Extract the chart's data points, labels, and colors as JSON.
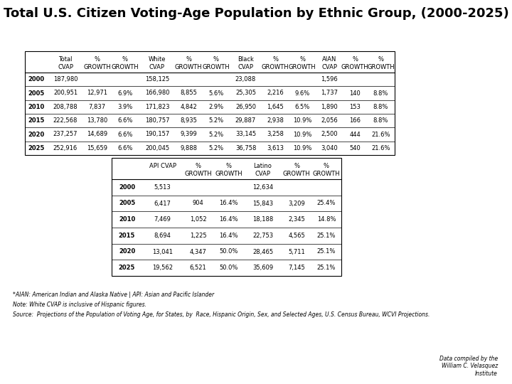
{
  "title": "Total U.S. Citizen Voting-Age Population by Ethnic Group, (2000-2025)",
  "t1_rows": [
    [
      "2000",
      "187,980",
      "",
      "",
      "158,125",
      "",
      "",
      "23,088",
      "",
      "",
      "1,596",
      "",
      ""
    ],
    [
      "2005",
      "200,951",
      "12,971",
      "6.9%",
      "166,980",
      "8,855",
      "5.6%",
      "25,305",
      "2,216",
      "9.6%",
      "1,737",
      "140",
      "8.8%"
    ],
    [
      "2010",
      "208,788",
      "7,837",
      "3.9%",
      "171,823",
      "4,842",
      "2.9%",
      "26,950",
      "1,645",
      "6.5%",
      "1,890",
      "153",
      "8.8%"
    ],
    [
      "2015",
      "222,568",
      "13,780",
      "6.6%",
      "180,757",
      "8,935",
      "5.2%",
      "29,887",
      "2,938",
      "10.9%",
      "2,056",
      "166",
      "8.8%"
    ],
    [
      "2020",
      "237,257",
      "14,689",
      "6.6%",
      "190,157",
      "9,399",
      "5.2%",
      "33,145",
      "3,258",
      "10.9%",
      "2,500",
      "444",
      "21.6%"
    ],
    [
      "2025",
      "252,916",
      "15,659",
      "6.6%",
      "200,045",
      "9,888",
      "5.2%",
      "36,758",
      "3,613",
      "10.9%",
      "3,040",
      "540",
      "21.6%"
    ]
  ],
  "t1_h1": [
    "",
    "Total",
    "%",
    "%",
    "White",
    "%",
    "%",
    "Black",
    "%",
    "%",
    "AIAN",
    "%",
    "%"
  ],
  "t1_h2": [
    "",
    "CVAP",
    "GROWTH",
    "GROWTH",
    "CVAP",
    "GROWTH",
    "GROWTH",
    "CVAP",
    "GROWTH",
    "GROWTH",
    "CVAP",
    "GROWTH",
    "GROWTH"
  ],
  "t2_rows": [
    [
      "2000",
      "5,513",
      "",
      "",
      "12,634",
      "",
      ""
    ],
    [
      "2005",
      "6,417",
      "904",
      "16.4%",
      "15,843",
      "3,209",
      "25.4%"
    ],
    [
      "2010",
      "7,469",
      "1,052",
      "16.4%",
      "18,188",
      "2,345",
      "14.8%"
    ],
    [
      "2015",
      "8,694",
      "1,225",
      "16.4%",
      "22,753",
      "4,565",
      "25.1%"
    ],
    [
      "2020",
      "13,041",
      "4,347",
      "50.0%",
      "28,465",
      "5,711",
      "25.1%"
    ],
    [
      "2025",
      "19,562",
      "6,521",
      "50.0%",
      "35,609",
      "7,145",
      "25.1%"
    ]
  ],
  "t2_h1": [
    "",
    "API CVAP",
    "%",
    "%",
    "Latino",
    "%",
    "%"
  ],
  "t2_h2": [
    "",
    "",
    "GROWTH",
    "GROWTH",
    "CVAP",
    "GROWTH",
    "GROWTH"
  ],
  "footnote1": "*AIAN: American Indian and Alaska Native | API: Asian and Pacific Islander",
  "footnote2": "Note: White CVAP is inclusive of Hispanic figures.",
  "footnote3": "Source:  Projections of the Population of Voting Age, for States, by  Race, Hispanic Origin, Sex, and Selected Ages, U.S. Census Bureau, WCVI Projections.",
  "credit": "Data compiled by the\nWilliam C. Velasquez\nInstitute",
  "bg_color": "#ffffff"
}
